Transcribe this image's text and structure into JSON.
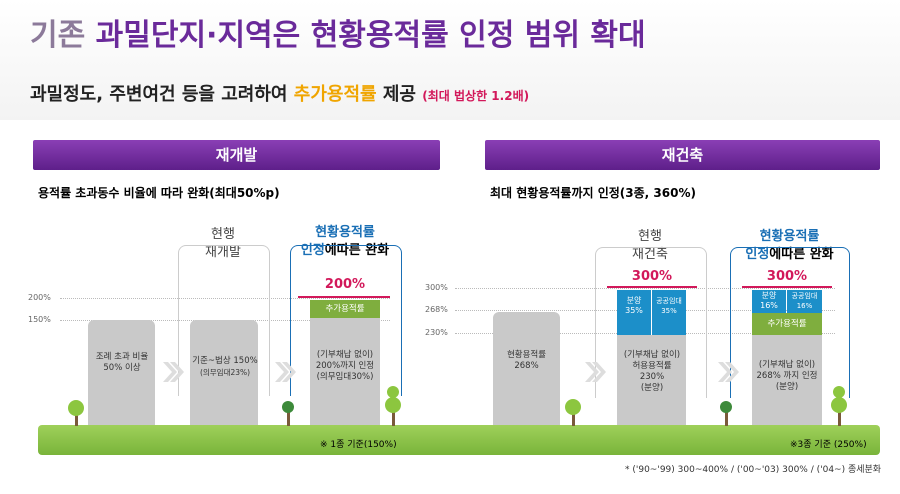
{
  "title": {
    "prefix": "기존",
    "main": "과밀단지·지역은 현황용적률 인정 범위 확대"
  },
  "subtitle": {
    "lead": "과밀정도, 주변여건 등을 고려하여",
    "highlight": "추가용적률",
    "tail": "제공",
    "note": "(최대 법상한 1.2배)"
  },
  "left": {
    "header": "재개발",
    "description": "용적률 초과동수 비율에 따라 완화(최대50%p)",
    "levels": [
      "200%",
      "150%"
    ],
    "col_current": "현행\n재개발",
    "col_relief": {
      "highlight": "현황용적률\n인정",
      "rest": "에따른 완화"
    },
    "building1": "조례 초과 비율\n50% 이상",
    "building2": {
      "main": "기준~법상 150%",
      "sub": "(의무임대23%)"
    },
    "building3": {
      "top_label": "200%",
      "extra": "추가용적률",
      "text": "(기부채납 없이)\n200%까지 인정\n(의무임대30%)"
    },
    "footer": "※ 1종 기준(150%)"
  },
  "right": {
    "header": "재건축",
    "description": "최대 현황용적률까지 인정(3종, 360%)",
    "levels": [
      "300%",
      "268%",
      "230%"
    ],
    "col_current": "현행\n재건축",
    "col_relief": {
      "highlight": "현황용적률\n인정",
      "rest": "에따른 완화"
    },
    "building1": "현황용적률\n268%",
    "building2": {
      "top_label": "300%",
      "sale": "분양\n35%",
      "rental": "공공임대\n35%",
      "text": "(기부채납 없이)\n허용용적률\n230%\n(분양)"
    },
    "building3": {
      "top_label": "300%",
      "sale": "분양\n16%",
      "rental": "공공임대\n16%",
      "extra": "추가용적률",
      "text": "(기부채납 없이)\n268% 까지 인정\n(분양)"
    },
    "footer": "※3종 기준 (250%)"
  },
  "footnote": "* ('90~'99) 300~400% / ('00~'03) 300% / ('04~) 종세분화"
}
